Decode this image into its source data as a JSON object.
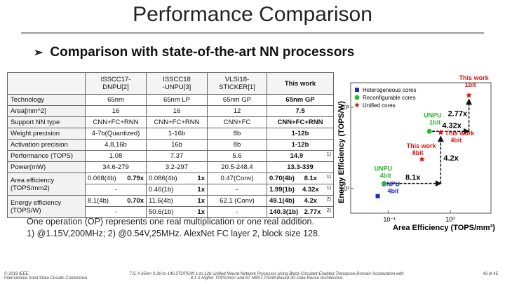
{
  "slide": {
    "title": "Performance Comparison",
    "subtitle": "Comparison with state-of-the-art NN processors",
    "bullet_glyph": "➢"
  },
  "table": {
    "headers": [
      "",
      "ISSCC17-\nDNPU[2]",
      "ISSCC18\n-UNPU[3]",
      "VLSI18-\nSTICKER[1]",
      "This work"
    ],
    "rows": [
      {
        "label": "Technology",
        "cells": [
          "65nm",
          "65nm LP",
          "65nm GP",
          "65nm GP"
        ]
      },
      {
        "label": "Area[mm^2]",
        "cells": [
          "16",
          "16",
          "12",
          "7.5"
        ]
      },
      {
        "label": "Support NN type",
        "cells": [
          "CNN+FC+RNN",
          "CNN+FC+RNN",
          "CNN+FC",
          "CNN+FC+RNN"
        ]
      },
      {
        "label": "Weight precision",
        "cells": [
          "4-7b(Quantized)",
          "1-16b",
          "8b",
          "1-12b"
        ]
      },
      {
        "label": "Activation precision",
        "cells": [
          "4,8,16b",
          "16b",
          "8b",
          "1-12b"
        ]
      },
      {
        "label": "Performance (TOPS)",
        "cells": [
          "1.08",
          "7.37",
          "5.6",
          "14.9"
        ],
        "note": "1)"
      },
      {
        "label": "Power(mW)",
        "cells": [
          "34.6-279",
          "3.2-297",
          "20.5-248.4",
          "13.3-339"
        ]
      }
    ],
    "area_eff": {
      "label": "Area efficiency\n(TOPS/mm2)",
      "row1": [
        [
          "0.068(4b)",
          "0.79x"
        ],
        [
          "0.086(4b)",
          "1x"
        ],
        [
          "0.47(Conv)",
          ""
        ],
        [
          "0.70(4b)",
          "8.1x",
          "1)"
        ]
      ],
      "row2": [
        [
          "-",
          ""
        ],
        [
          "0.46(1b)",
          "1x"
        ],
        [
          "-",
          ""
        ],
        [
          "1.99(1b)",
          "4.32x",
          "1)"
        ]
      ]
    },
    "energy_eff": {
      "label": "Energy efficiency\n(TOPS/W)",
      "row1": [
        [
          "8.1(4b)",
          "0.70x"
        ],
        [
          "11.6(4b)",
          "1x"
        ],
        [
          "62.1 (Conv)",
          ""
        ],
        [
          "49.1(4b)",
          "4.2x",
          "2)"
        ]
      ],
      "row2": [
        [
          "-",
          ""
        ],
        [
          "50.6(1b)",
          "1x"
        ],
        [
          "-",
          ""
        ],
        [
          "140.3(1b)",
          "2.77x",
          "2)"
        ]
      ]
    }
  },
  "notes": {
    "line1": "One operation (OP) represents one real multiplication or one real addition.",
    "line2": "1) @1.15V,200MHz;  2) @0.54V,25MHz.   AlexNet FC layer 2, block size 128."
  },
  "footer": {
    "left1": "© 2019 IEEE",
    "left2": "International Solid-State Circuits Conference",
    "center1": "7.5: A 65nm 0.39-to-140.3TOPS/W 1-to-12b Unified Neural-Network Processor Using Block-Circulant-Enabled Transpose-Domain Acceleration with",
    "center2": "8.1 X Higher TOPS/mm² and 6T HBST-TRAM-Based 2D Data-Reuse Architecture",
    "right": "43 of 45"
  },
  "chart_data": {
    "type": "scatter",
    "xlabel": "Area Efficiency (TOPS/mm²)",
    "ylabel": "Energy Efficiency (TOPS/W)",
    "x_scale": "log",
    "y_scale": "log",
    "x_ticks": [
      "10⁻¹",
      "10⁰"
    ],
    "y_ticks": [
      "10¹",
      "10²"
    ],
    "legend": [
      {
        "name": "Heterogeneous cores",
        "marker": "square",
        "color": "#1f2fa8"
      },
      {
        "name": "Reconfigurable cores",
        "marker": "circle",
        "color": "#2db82d"
      },
      {
        "name": "Unified cores",
        "marker": "star",
        "color": "#d01818"
      }
    ],
    "points": [
      {
        "label": "DNPU\n4bit",
        "x": 0.068,
        "y": 8.1,
        "group": "Heterogeneous cores",
        "color": "#1f2fa8"
      },
      {
        "label": "UNPU\n4bit",
        "x": 0.086,
        "y": 11.6,
        "group": "Reconfigurable cores",
        "color": "#2db82d"
      },
      {
        "label": "UNPU\n1bit",
        "x": 0.46,
        "y": 50.6,
        "group": "Reconfigurable cores",
        "color": "#2db82d"
      },
      {
        "label": "This work\n8bit",
        "x": 0.35,
        "y": 23,
        "group": "Unified cores",
        "color": "#d01818"
      },
      {
        "label": "This work\n4bit",
        "x": 0.7,
        "y": 49.1,
        "group": "Unified cores",
        "color": "#d01818"
      },
      {
        "label": "This work\n1bit",
        "x": 1.99,
        "y": 140.3,
        "group": "Unified cores",
        "color": "#d01818"
      }
    ],
    "annotations": [
      "8.1x",
      "4.2x",
      "4.32x",
      "2.77x"
    ],
    "grid": false
  }
}
